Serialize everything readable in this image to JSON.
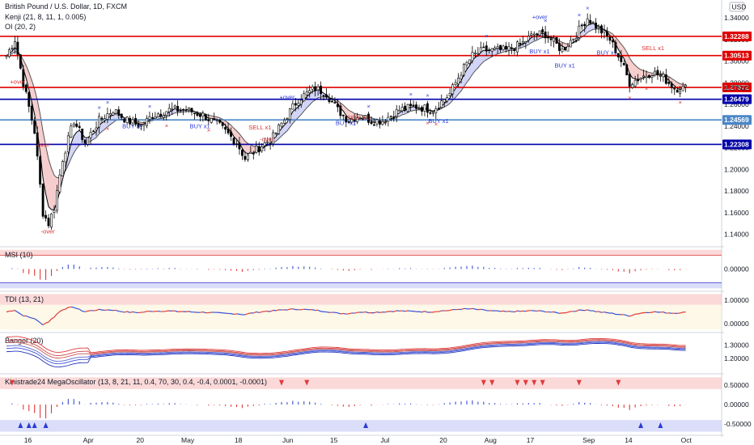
{
  "header": {
    "title": "British Pound / U.S. Dollar, 1D, FXCM",
    "indicators": [
      "Kenji (21, 8, 11, 1, 0.005)",
      "OI (20, 2)"
    ],
    "currency_badge": "USD"
  },
  "colors": {
    "bull": "#ffffff",
    "bear": "#000000",
    "resistance": "#e00000",
    "support": "#0000aa",
    "mid_support": "#4a86c8",
    "cloud_bull": "#c9cdf5",
    "cloud_bear": "#f5c4c4",
    "buy_marker": "#2b3bd6",
    "sell_marker": "#d93030"
  },
  "chart_data": [
    {
      "id": "price",
      "type": "candlestick",
      "ylim": [
        1.13,
        1.355
      ],
      "yticks": [
        1.14,
        1.16,
        1.18,
        1.2,
        1.22,
        1.24,
        1.26,
        1.28,
        1.3,
        1.32,
        1.34
      ],
      "ytick_labels": [
        "1.14000",
        "1.16000",
        "1.18000",
        "1.20000",
        "1.22000",
        "1.24000",
        "1.26000",
        "1.28000",
        "1.30000",
        "1.32000",
        "1.34000"
      ],
      "xtick_labels": [
        {
          "label": "16",
          "bar": 8
        },
        {
          "label": "Apr",
          "bar": 29
        },
        {
          "label": "20",
          "bar": 48
        },
        {
          "label": "May",
          "bar": 64
        },
        {
          "label": "18",
          "bar": 83
        },
        {
          "label": "Jun",
          "bar": 100
        },
        {
          "label": "15",
          "bar": 117
        },
        {
          "label": "Jul",
          "bar": 135
        },
        {
          "label": "20",
          "bar": 156
        },
        {
          "label": "Aug",
          "bar": 172
        },
        {
          "label": "17",
          "bar": 187
        },
        {
          "label": "Sep",
          "bar": 207
        },
        {
          "label": "14",
          "bar": 222
        },
        {
          "label": "Oct",
          "bar": 242
        }
      ],
      "levels": [
        {
          "value": 1.32288,
          "label": "1.32288",
          "kind": "resistance"
        },
        {
          "value": 1.30513,
          "label": "1.30513",
          "kind": "resistance"
        },
        {
          "value": 1.27572,
          "label": "1.27572",
          "kind": "resistance"
        },
        {
          "value": 1.26479,
          "label": "1.26479",
          "kind": "support"
        },
        {
          "value": 1.24569,
          "label": "1.24569",
          "kind": "mid_support"
        },
        {
          "value": 1.22308,
          "label": "1.22308",
          "kind": "support"
        }
      ],
      "last_price": {
        "value": 1.27532,
        "label": "1.27532"
      },
      "signals": [
        {
          "bar": 3,
          "value": 1.279,
          "text": "+over",
          "kind": "sell"
        },
        {
          "bar": 12,
          "value": 1.221,
          "text": "-over",
          "kind": "sell"
        },
        {
          "bar": 14,
          "value": 1.141,
          "text": "-over",
          "kind": "sell"
        },
        {
          "bar": 43,
          "value": 1.238,
          "text": "BUY x1",
          "kind": "buy"
        },
        {
          "bar": 67,
          "value": 1.238,
          "text": "BUY x1",
          "kind": "buy"
        },
        {
          "bar": 88,
          "value": 1.237,
          "text": "SELL x1",
          "kind": "sell"
        },
        {
          "bar": 92,
          "value": 1.226,
          "text": "-over",
          "kind": "sell"
        },
        {
          "bar": 99,
          "value": 1.265,
          "text": "+over",
          "kind": "buy"
        },
        {
          "bar": 123,
          "value": 1.246,
          "text": "SELL x1",
          "kind": "sell"
        },
        {
          "bar": 119,
          "value": 1.241,
          "text": "BUY x1",
          "kind": "buy"
        },
        {
          "bar": 152,
          "value": 1.243,
          "text": "BUY x1",
          "kind": "buy"
        },
        {
          "bar": 189,
          "value": 1.339,
          "text": "+over",
          "kind": "buy"
        },
        {
          "bar": 188,
          "value": 1.307,
          "text": "BUY x1",
          "kind": "buy"
        },
        {
          "bar": 197,
          "value": 1.294,
          "text": "BUY x1",
          "kind": "buy"
        },
        {
          "bar": 212,
          "value": 1.306,
          "text": "BUY x1",
          "kind": "buy"
        },
        {
          "bar": 228,
          "value": 1.31,
          "text": "SELL x1",
          "kind": "sell"
        }
      ]
    },
    {
      "id": "msi",
      "type": "histogram",
      "title": "MSI (10)",
      "ylim": [
        -0.45,
        0.45
      ],
      "yticks": [
        0.0
      ],
      "ytick_labels": [
        "0.00000"
      ]
    },
    {
      "id": "tdi",
      "type": "line",
      "title": "TDI (13, 21)",
      "ylim": [
        -0.3,
        1.3
      ],
      "yticks": [
        1.0,
        0.0
      ],
      "ytick_labels": [
        "1.00000",
        "0.00000"
      ]
    },
    {
      "id": "banger",
      "type": "line",
      "title": "Banger (20)",
      "ylim": [
        1.1,
        1.38
      ],
      "yticks": [
        1.3,
        1.2
      ],
      "ytick_labels": [
        "1.30000",
        "1.20000"
      ]
    },
    {
      "id": "mega",
      "type": "histogram",
      "title": "Kinistrade24 MegaOscillator (13, 8, 21, 11, 0.4, 70, 30, 0.4, -0.4, 0.0001, -0.0001)",
      "ylim": [
        -0.75,
        0.75
      ],
      "yticks": [
        0.5,
        0.0,
        -0.5
      ],
      "ytick_labels": [
        "0.50000",
        "0.00000",
        "-0.50000"
      ]
    }
  ]
}
